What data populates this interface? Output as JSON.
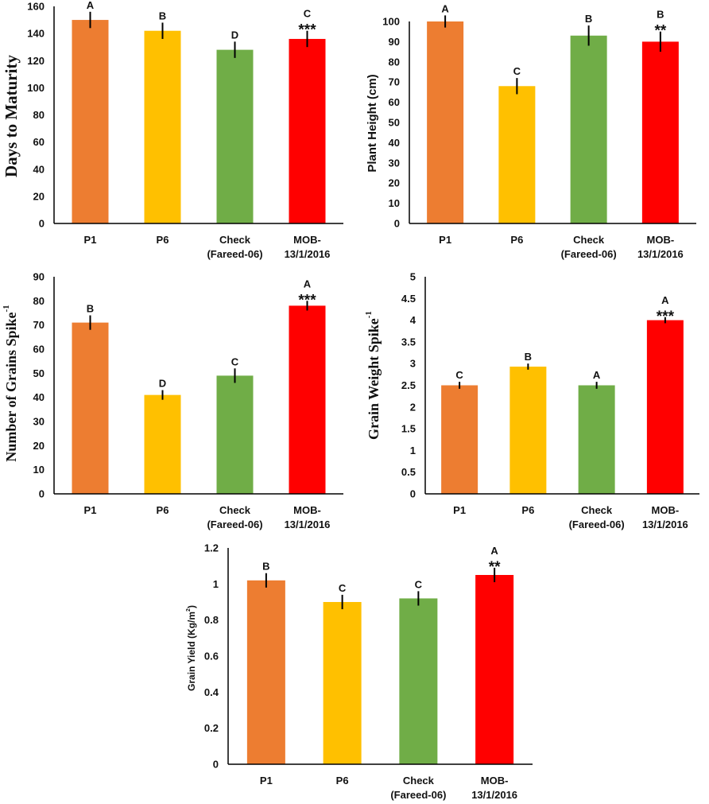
{
  "chart_data": [
    {
      "type": "bar",
      "ylabel": "Days to Maturity",
      "ylabel_sup": "",
      "ylabel_style": "serif",
      "categories": [
        [
          "P1"
        ],
        [
          "P6"
        ],
        [
          "Check",
          "(Fareed-06)"
        ],
        [
          "MOB-",
          "13/1/2016"
        ]
      ],
      "values": [
        150,
        142,
        128,
        136
      ],
      "errors": [
        6,
        6,
        6,
        6
      ],
      "letters": [
        "A",
        "B",
        "D",
        "C"
      ],
      "significance": [
        "",
        "",
        "",
        "***"
      ],
      "ylim": [
        0,
        160
      ],
      "yticks": [
        0,
        20,
        40,
        60,
        80,
        100,
        120,
        140,
        160
      ],
      "colors": [
        "#ED7D31",
        "#FFC000",
        "#70AD47",
        "#FF0000"
      ]
    },
    {
      "type": "bar",
      "ylabel": "Plant Height (cm)",
      "ylabel_sup": "",
      "ylabel_style": "sans",
      "categories": [
        [
          "P1"
        ],
        [
          "P6"
        ],
        [
          "Check",
          "(Fareed-06)"
        ],
        [
          "MOB-",
          "13/1/2016"
        ]
      ],
      "values": [
        100,
        68,
        93,
        90
      ],
      "errors": [
        3,
        4,
        5,
        5
      ],
      "letters": [
        "A",
        "C",
        "B",
        "B"
      ],
      "significance": [
        "",
        "",
        "",
        "**"
      ],
      "ylim": [
        0,
        100
      ],
      "yticks": [
        0,
        10,
        20,
        30,
        40,
        50,
        60,
        70,
        80,
        90,
        100
      ],
      "colors": [
        "#ED7D31",
        "#FFC000",
        "#70AD47",
        "#FF0000"
      ]
    },
    {
      "type": "bar",
      "ylabel": "Number of Grains Spike",
      "ylabel_sup": "-1",
      "ylabel_style": "serif",
      "categories": [
        [
          "P1"
        ],
        [
          "P6"
        ],
        [
          "Check",
          "(Fareed-06)"
        ],
        [
          "MOB-",
          "13/1/2016"
        ]
      ],
      "values": [
        71,
        41,
        49,
        78
      ],
      "errors": [
        3,
        2,
        3,
        2
      ],
      "letters": [
        "B",
        "D",
        "C",
        "A"
      ],
      "significance": [
        "",
        "",
        "",
        "***"
      ],
      "ylim": [
        0,
        90
      ],
      "yticks": [
        0,
        10,
        20,
        30,
        40,
        50,
        60,
        70,
        80,
        90
      ],
      "colors": [
        "#ED7D31",
        "#FFC000",
        "#70AD47",
        "#FF0000"
      ]
    },
    {
      "type": "bar",
      "ylabel": "Grain Weight Spike",
      "ylabel_sup": "-1",
      "ylabel_style": "serif",
      "categories": [
        [
          "P1"
        ],
        [
          "P6"
        ],
        [
          "Check",
          "(Fareed-06)"
        ],
        [
          "MOB-",
          "13/1/2016"
        ]
      ],
      "values": [
        2.5,
        2.93,
        2.5,
        4.0
      ],
      "errors": [
        0.08,
        0.07,
        0.08,
        0.07
      ],
      "letters": [
        "C",
        "B",
        "A",
        "A"
      ],
      "significance": [
        "",
        "",
        "",
        "***"
      ],
      "ylim": [
        0,
        5
      ],
      "yticks": [
        0,
        0.5,
        1,
        1.5,
        2,
        2.5,
        3,
        3.5,
        4,
        4.5,
        5
      ],
      "colors": [
        "#ED7D31",
        "#FFC000",
        "#70AD47",
        "#FF0000"
      ]
    },
    {
      "type": "bar",
      "ylabel": "Grain Yield (Kg/m",
      "ylabel_sup": "2",
      "ylabel_suffix": ")",
      "ylabel_style": "sans",
      "categories": [
        [
          "P1"
        ],
        [
          "P6"
        ],
        [
          "Check",
          "(Fareed-06)"
        ],
        [
          "MOB-",
          "13/1/2016"
        ]
      ],
      "values": [
        1.02,
        0.9,
        0.92,
        1.05
      ],
      "errors": [
        0.04,
        0.04,
        0.04,
        0.04
      ],
      "letters": [
        "B",
        "C",
        "C",
        "A"
      ],
      "significance": [
        "",
        "",
        "",
        "**"
      ],
      "ylim": [
        0,
        1.2
      ],
      "yticks": [
        "0",
        "0.2",
        "0.4",
        "0.6",
        "0.8",
        "1",
        "1.2"
      ],
      "colors": [
        "#ED7D31",
        "#FFC000",
        "#70AD47",
        "#FF0000"
      ]
    }
  ]
}
